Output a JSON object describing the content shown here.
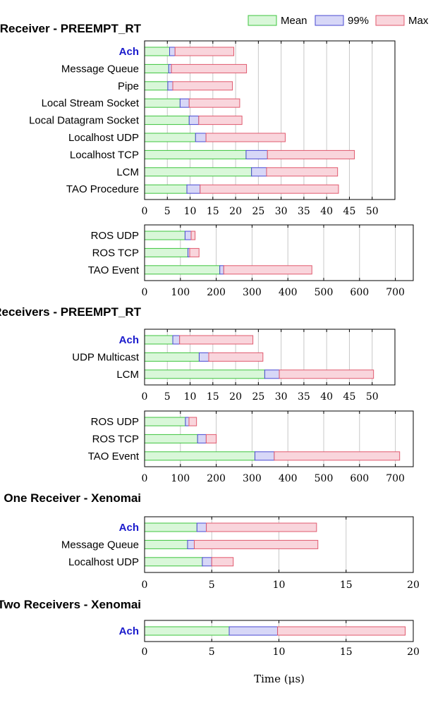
{
  "legend": [
    {
      "label": "Mean",
      "fill": "#d9f7d9",
      "stroke": "#3ec43e"
    },
    {
      "label": "99%",
      "fill": "#d7d7f7",
      "stroke": "#4a4ad0"
    },
    {
      "label": "Max",
      "fill": "#f9d5dc",
      "stroke": "#e05a6e"
    }
  ],
  "highlight_color": "#1a1acc",
  "xlabel": "Time (μs)",
  "chart_data": [
    {
      "type": "bar",
      "subtype": "stacked-horizontal",
      "title": "One Receiver - PREEMPT_RT",
      "categories": [
        "Ach",
        "Message Queue",
        "Pipe",
        "Local Stream Socket",
        "Local Datagram Socket",
        "Localhost UDP",
        "Localhost TCP",
        "LCM",
        "TAO Procedure"
      ],
      "highlight": [
        "Ach"
      ],
      "series": [
        {
          "name": "Mean",
          "values": [
            5.5,
            5.3,
            5.1,
            7.8,
            9.8,
            11.2,
            22.3,
            23.5,
            9.3
          ]
        },
        {
          "name": "99%",
          "values": [
            6.7,
            5.9,
            6.2,
            9.8,
            11.9,
            13.5,
            27,
            26.8,
            12.2
          ]
        },
        {
          "name": "Max",
          "values": [
            19.6,
            22.4,
            19.3,
            20.9,
            21.4,
            30.9,
            46.1,
            42.4,
            42.6
          ]
        }
      ],
      "xlim": [
        0,
        55
      ],
      "ticks": [
        0,
        5,
        10,
        15,
        20,
        25,
        30,
        35,
        40,
        45,
        50
      ]
    },
    {
      "type": "bar",
      "subtype": "stacked-horizontal",
      "title": "",
      "categories": [
        "ROS UDP",
        "ROS TCP",
        "TAO Event"
      ],
      "highlight": [],
      "series": [
        {
          "name": "Mean",
          "values": [
            113,
            121,
            210
          ]
        },
        {
          "name": "99%",
          "values": [
            130,
            126,
            221
          ]
        },
        {
          "name": "Max",
          "values": [
            141,
            152,
            467
          ]
        }
      ],
      "xlim": [
        0,
        750
      ],
      "ticks": [
        0,
        100,
        200,
        300,
        400,
        500,
        600,
        700
      ]
    },
    {
      "type": "bar",
      "subtype": "stacked-horizontal",
      "title": "Two Receivers - PREEMPT_RT",
      "categories": [
        "Ach",
        "UDP Multicast",
        "LCM"
      ],
      "highlight": [
        "Ach"
      ],
      "series": [
        {
          "name": "Mean",
          "values": [
            6.2,
            12,
            26.4
          ]
        },
        {
          "name": "99%",
          "values": [
            7.7,
            14.1,
            29.6
          ]
        },
        {
          "name": "Max",
          "values": [
            23.8,
            26,
            50.3
          ]
        }
      ],
      "xlim": [
        0,
        55
      ],
      "ticks": [
        0,
        5,
        10,
        15,
        20,
        25,
        30,
        35,
        40,
        45,
        50
      ]
    },
    {
      "type": "bar",
      "subtype": "stacked-horizontal",
      "title": "",
      "categories": [
        "ROS UDP",
        "ROS TCP",
        "TAO Event"
      ],
      "highlight": [],
      "series": [
        {
          "name": "Mean",
          "values": [
            114,
            148,
            308
          ]
        },
        {
          "name": "99%",
          "values": [
            124,
            172,
            362
          ]
        },
        {
          "name": "Max",
          "values": [
            145,
            200,
            712
          ]
        }
      ],
      "xlim": [
        0,
        750
      ],
      "ticks": [
        0,
        100,
        200,
        300,
        400,
        500,
        600,
        700
      ]
    },
    {
      "type": "bar",
      "subtype": "stacked-horizontal",
      "title": "One Receiver - Xenomai",
      "categories": [
        "Ach",
        "Message Queue",
        "Localhost UDP"
      ],
      "highlight": [
        "Ach"
      ],
      "series": [
        {
          "name": "Mean",
          "values": [
            3.9,
            3.2,
            4.3
          ]
        },
        {
          "name": "99%",
          "values": [
            4.6,
            3.7,
            5
          ]
        },
        {
          "name": "Max",
          "values": [
            12.8,
            12.9,
            6.6
          ]
        }
      ],
      "xlim": [
        0,
        20
      ],
      "ticks": [
        0,
        5,
        10,
        15,
        20
      ]
    },
    {
      "type": "bar",
      "subtype": "stacked-horizontal",
      "title": "Two Receivers - Xenomai",
      "categories": [
        "Ach"
      ],
      "highlight": [
        "Ach"
      ],
      "series": [
        {
          "name": "Mean",
          "values": [
            6.3
          ]
        },
        {
          "name": "99%",
          "values": [
            9.9
          ]
        },
        {
          "name": "Max",
          "values": [
            19.4
          ]
        }
      ],
      "xlim": [
        0,
        20
      ],
      "ticks": [
        0,
        5,
        10,
        15,
        20
      ]
    }
  ]
}
